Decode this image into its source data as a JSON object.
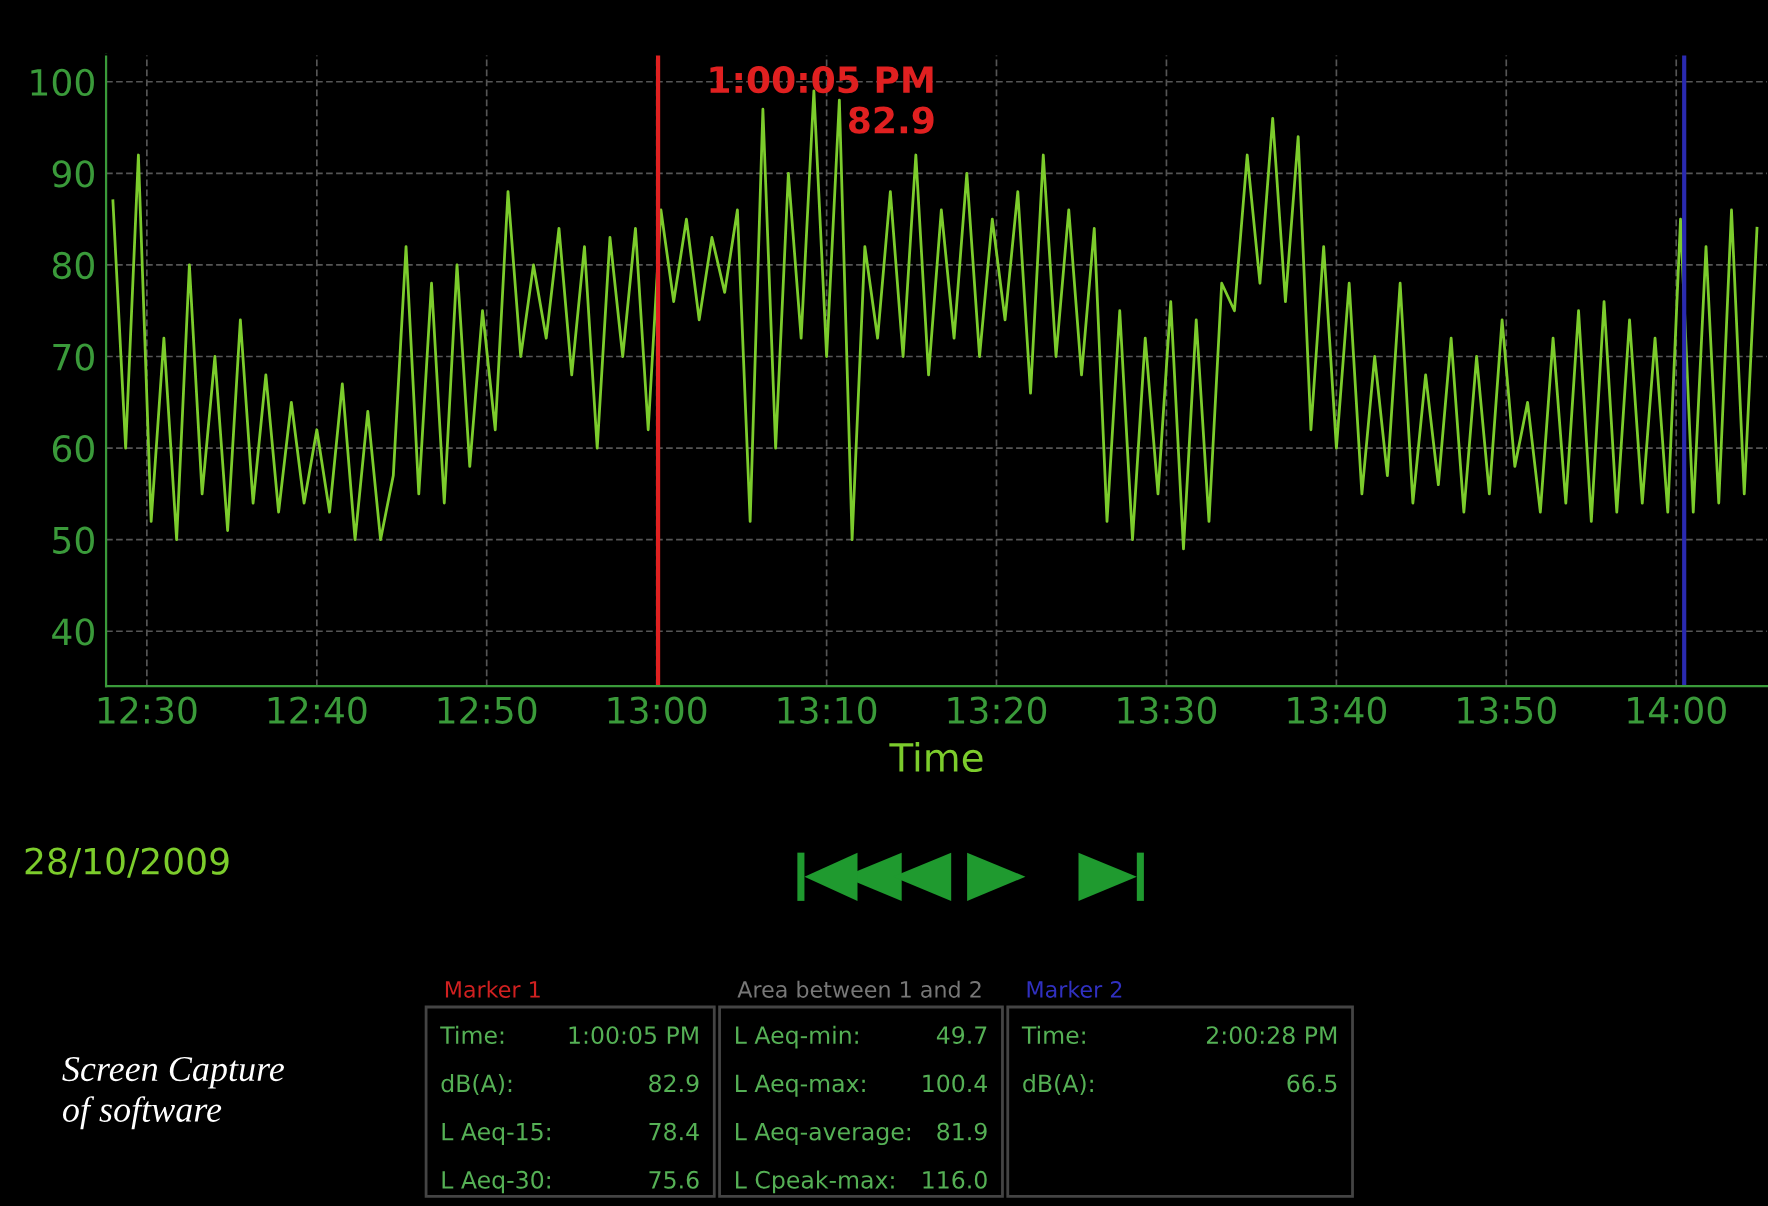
{
  "chart_data": {
    "type": "line",
    "xlabel": "Time",
    "grid": true,
    "legend": false,
    "marker": "none",
    "line_style": "solid",
    "xlim": [
      12.46,
      14.09
    ],
    "ylim": [
      34,
      103
    ],
    "xticks": [
      {
        "value": 12.5,
        "label": "12:30"
      },
      {
        "value": 12.6667,
        "label": "12:40"
      },
      {
        "value": 12.8333,
        "label": "12:50"
      },
      {
        "value": 13.0,
        "label": "13:00"
      },
      {
        "value": 13.1667,
        "label": "13:10"
      },
      {
        "value": 13.3333,
        "label": "13:20"
      },
      {
        "value": 13.5,
        "label": "13:30"
      },
      {
        "value": 13.6667,
        "label": "13:40"
      },
      {
        "value": 13.8333,
        "label": "13:50"
      },
      {
        "value": 14.0,
        "label": "14:00"
      }
    ],
    "yticks": [
      40,
      50,
      60,
      70,
      80,
      90,
      100
    ],
    "series": [
      {
        "color": "#7ccc2c",
        "x": [
          12.4667,
          12.4792,
          12.4917,
          12.5042,
          12.5167,
          12.5292,
          12.5417,
          12.5542,
          12.5667,
          12.5792,
          12.5917,
          12.6042,
          12.6167,
          12.6292,
          12.6417,
          12.6542,
          12.6667,
          12.6792,
          12.6917,
          12.7042,
          12.7167,
          12.7292,
          12.7417,
          12.7542,
          12.7667,
          12.7792,
          12.7917,
          12.8042,
          12.8167,
          12.8292,
          12.8417,
          12.8542,
          12.8667,
          12.8792,
          12.8917,
          12.9042,
          12.9167,
          12.9292,
          12.9417,
          12.9542,
          12.9667,
          12.9792,
          12.9917,
          13.0042,
          13.0167,
          13.0292,
          13.0417,
          13.0542,
          13.0667,
          13.0792,
          13.0917,
          13.1042,
          13.1167,
          13.1292,
          13.1417,
          13.1542,
          13.1667,
          13.1792,
          13.1917,
          13.2042,
          13.2167,
          13.2292,
          13.2417,
          13.2542,
          13.2667,
          13.2792,
          13.2917,
          13.3042,
          13.3167,
          13.3292,
          13.3417,
          13.3542,
          13.3667,
          13.3792,
          13.3917,
          13.4042,
          13.4167,
          13.4292,
          13.4417,
          13.4542,
          13.4667,
          13.4792,
          13.4917,
          13.5042,
          13.5167,
          13.5292,
          13.5417,
          13.5542,
          13.5667,
          13.5792,
          13.5917,
          13.6042,
          13.6167,
          13.6292,
          13.6417,
          13.6542,
          13.6667,
          13.6792,
          13.6917,
          13.7042,
          13.7167,
          13.7292,
          13.7417,
          13.7542,
          13.7667,
          13.7792,
          13.7917,
          13.8042,
          13.8167,
          13.8292,
          13.8417,
          13.8542,
          13.8667,
          13.8792,
          13.8917,
          13.9042,
          13.9167,
          13.9292,
          13.9417,
          13.9542,
          13.9667,
          13.9792,
          13.9917,
          14.0042,
          14.0167,
          14.0292,
          14.0417,
          14.0542,
          14.0667,
          14.0792
        ],
        "values": [
          87,
          60,
          92,
          52,
          72,
          50,
          80,
          55,
          70,
          51,
          74,
          54,
          68,
          53,
          65,
          54,
          62,
          53,
          67,
          50,
          64,
          50,
          57,
          82,
          55,
          78,
          54,
          80,
          58,
          75,
          62,
          88,
          70,
          80,
          72,
          84,
          68,
          82,
          60,
          83,
          70,
          84,
          62,
          86,
          76,
          85,
          74,
          83,
          77,
          86,
          52,
          97,
          60,
          90,
          72,
          99,
          70,
          98,
          50,
          82,
          72,
          88,
          70,
          92,
          68,
          86,
          72,
          90,
          70,
          85,
          74,
          88,
          66,
          92,
          70,
          86,
          68,
          84,
          52,
          75,
          50,
          72,
          55,
          76,
          49,
          74,
          52,
          78,
          75,
          92,
          78,
          96,
          76,
          94,
          62,
          82,
          60,
          78,
          55,
          70,
          57,
          78,
          54,
          68,
          56,
          72,
          53,
          70,
          55,
          74,
          58,
          65,
          53,
          72,
          54,
          75,
          52,
          76,
          53,
          74,
          54,
          72,
          53,
          85,
          53,
          82,
          54,
          86,
          55,
          84
        ]
      }
    ],
    "ref_lines": [
      {
        "axis": "x",
        "value": 13.0014,
        "color": "#e02020"
      },
      {
        "axis": "x",
        "value": 14.0078,
        "color": "#2a2ab0"
      }
    ],
    "annotations": [
      "28/10/2009",
      "Marker 1",
      "Time:",
      "1:00:05 PM",
      "dB(A):",
      "82.9",
      "L Aeq-15:",
      "78.4",
      "L Aeq-30:",
      "75.6",
      "Area between 1 and 2",
      "L Aeq-min:",
      "49.7",
      "L Aeq-max:",
      "100.4",
      "L Aeq-average:",
      "81.9",
      "L Cpeak-max:",
      "116.0",
      "Marker 2",
      "Time:",
      "2:00:28 PM",
      "dB(A):",
      "66.5",
      "Screen Capture\nof software",
      "1:00:05 PM\n82.9"
    ]
  }
}
